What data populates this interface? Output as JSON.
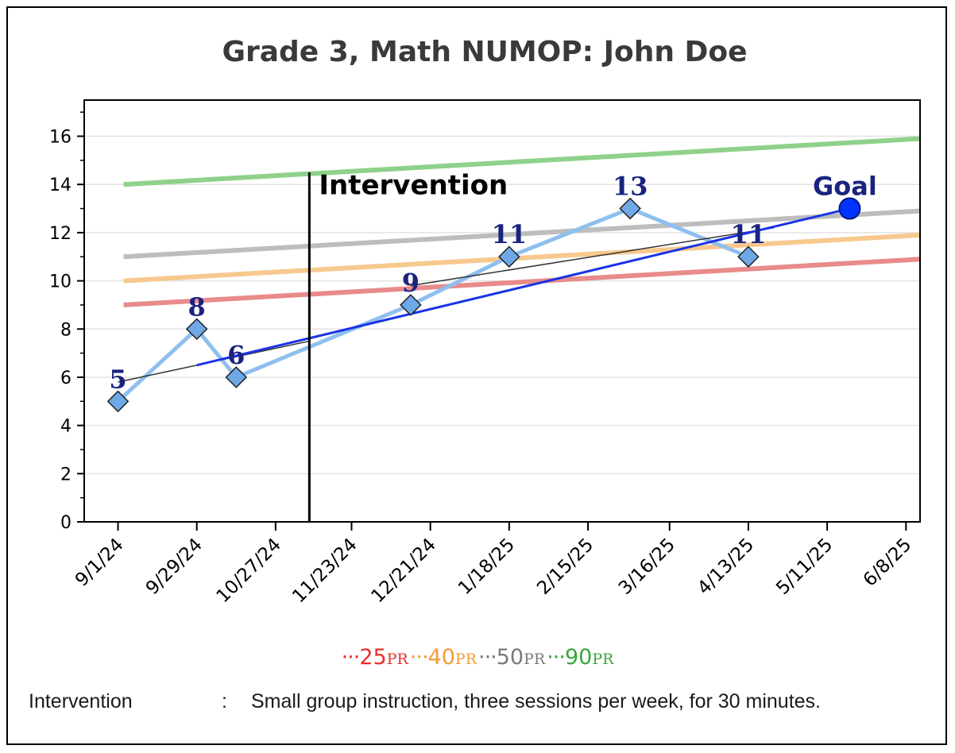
{
  "chart_data": {
    "type": "line",
    "title": "Grade 3, Math NUMOP: John Doe",
    "xlabel": "",
    "ylabel": "",
    "x_tick_labels": [
      "9/1/24",
      "9/29/24",
      "10/27/24",
      "11/23/24",
      "12/21/24",
      "1/18/25",
      "2/15/25",
      "3/16/25",
      "4/13/25",
      "5/11/25",
      "6/8/25"
    ],
    "x_range": [
      "2024-08-20",
      "2025-06-13"
    ],
    "ylim": [
      0,
      17.5
    ],
    "y_ticks": [
      0,
      2,
      4,
      6,
      8,
      10,
      12,
      14,
      16
    ],
    "grid": true,
    "scores": [
      {
        "x": "2024-09-01",
        "y": 5,
        "label": "5"
      },
      {
        "x": "2024-09-29",
        "y": 8,
        "label": "8"
      },
      {
        "x": "2024-10-13",
        "y": 6,
        "label": "6"
      },
      {
        "x": "2024-12-14",
        "y": 9,
        "label": "9"
      },
      {
        "x": "2025-01-18",
        "y": 11,
        "label": "11"
      },
      {
        "x": "2025-03-02",
        "y": 13,
        "label": "13"
      },
      {
        "x": "2025-04-13",
        "y": 11,
        "label": "11"
      }
    ],
    "goal": {
      "x": "2025-05-19",
      "y": 13,
      "label": "Goal"
    },
    "aimline": {
      "x": [
        "2024-09-29",
        "2025-05-19"
      ],
      "y": [
        6.5,
        13
      ]
    },
    "trendlines": [
      {
        "x": [
          "2024-09-01",
          "2024-11-08"
        ],
        "y": [
          5.8,
          7.5
        ]
      },
      {
        "x": [
          "2024-12-14",
          "2025-04-22"
        ],
        "y": [
          9.8,
          12.2
        ]
      }
    ],
    "intervention": {
      "x": "2024-11-08",
      "label": "Intervention"
    },
    "percentile_lines": [
      {
        "name": "25",
        "x": [
          "2024-09-03",
          "2025-06-13"
        ],
        "y": [
          9,
          10.9
        ],
        "color": "#e88b8b"
      },
      {
        "name": "40",
        "x": [
          "2024-09-03",
          "2025-06-13"
        ],
        "y": [
          10,
          11.9
        ],
        "color": "#f7c98f"
      },
      {
        "name": "50",
        "x": [
          "2024-09-03",
          "2025-06-13"
        ],
        "y": [
          11,
          12.9
        ],
        "color": "#bdbdbd"
      },
      {
        "name": "90",
        "x": [
          "2024-09-03",
          "2025-06-13"
        ],
        "y": [
          14,
          15.9
        ],
        "color": "#8fd18a"
      }
    ],
    "colors": {
      "score_line": "#8fbfee",
      "score_marker": "#6fa8e6",
      "label": "#1a237e",
      "aimline": "#1a33e6",
      "goal": "#0033ff",
      "trend": "#333333",
      "intervention": "#000000"
    }
  },
  "legend": [
    {
      "dots": "···",
      "value": "25",
      "suffix": "PR",
      "color": "#e8302a"
    },
    {
      "dots": "···",
      "value": "40",
      "suffix": "PR",
      "color": "#f29b3a"
    },
    {
      "dots": "···",
      "value": "50",
      "suffix": "PR",
      "color": "#7a7a7a"
    },
    {
      "dots": "···",
      "value": "90",
      "suffix": "PR",
      "color": "#3aa63a"
    }
  ],
  "footnote": {
    "label": "Intervention",
    "colon": ":",
    "value": "Small group instruction, three sessions per week, for 30 minutes."
  }
}
